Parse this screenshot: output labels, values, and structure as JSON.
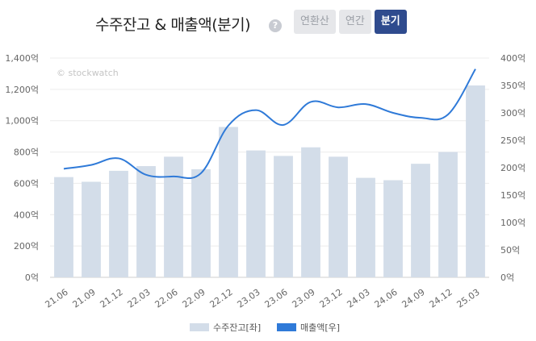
{
  "header": {
    "title": "수주잔고 & 매출액(분기)",
    "help_glyph": "?",
    "tabs": [
      {
        "label": "연환산",
        "active": false
      },
      {
        "label": "연간",
        "active": false
      },
      {
        "label": "분기",
        "active": true
      }
    ]
  },
  "watermark": "© stockwatch",
  "colors": {
    "bar": "#d3dde9",
    "line": "#2f7ad8",
    "active_tab": "#2f4b8e"
  },
  "chart_data": {
    "type": "bar+line",
    "categories": [
      "21.06",
      "21.09",
      "21.12",
      "22.03",
      "22.06",
      "22.09",
      "22.12",
      "23.03",
      "23.06",
      "23.09",
      "23.12",
      "24.03",
      "24.06",
      "24.09",
      "24.12",
      "25.03"
    ],
    "series": [
      {
        "name": "수주잔고[좌]",
        "type": "bar",
        "axis": "left",
        "values": [
          640,
          610,
          680,
          710,
          770,
          690,
          960,
          810,
          775,
          830,
          770,
          635,
          620,
          725,
          800,
          1225
        ]
      },
      {
        "name": "매출액[우]",
        "type": "line",
        "axis": "right",
        "values": [
          198,
          205,
          217,
          187,
          184,
          190,
          277,
          305,
          278,
          320,
          310,
          316,
          300,
          291,
          297,
          380
        ]
      }
    ],
    "left_axis": {
      "min": 0,
      "max": 1400,
      "ticks": [
        "0억",
        "200억",
        "400억",
        "600억",
        "800억",
        "1,000억",
        "1,200억",
        "1,400억"
      ]
    },
    "right_axis": {
      "min": 0,
      "max": 400,
      "ticks": [
        "0억",
        "50억",
        "100억",
        "150억",
        "200억",
        "250억",
        "300억",
        "350억",
        "400억"
      ]
    },
    "grid": true,
    "legend": "bottom"
  }
}
